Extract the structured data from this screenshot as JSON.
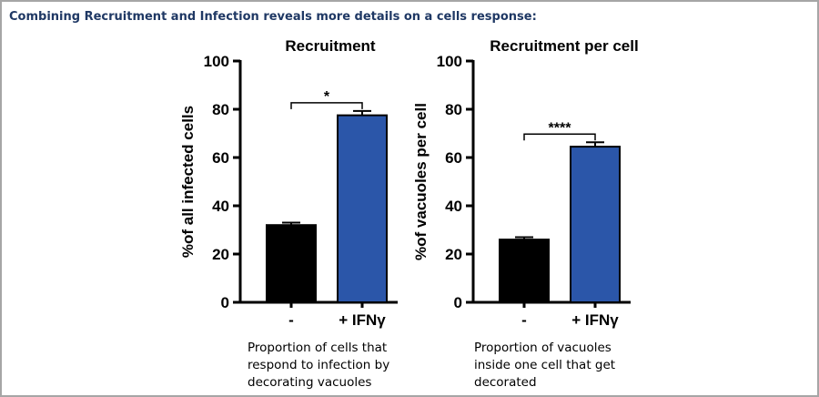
{
  "slide_title": "Combining Recruitment and Infection reveals more details on a cells response:",
  "captions": [
    [
      "Proportion of cells that",
      "respond to infection by",
      "decorating vacuoles"
    ],
    [
      "Proportion of vacuoles",
      "inside one cell that get",
      "decorated"
    ]
  ],
  "chart_data": [
    {
      "type": "bar",
      "title": "Recruitment",
      "xlabel": "",
      "ylabel": "%of all infected cells",
      "ylim": [
        0,
        100
      ],
      "yticks": [
        0,
        20,
        40,
        60,
        80,
        100
      ],
      "categories": [
        "-",
        "+ IFNγ"
      ],
      "values": [
        32,
        77.5
      ],
      "errors": [
        1,
        1.8
      ],
      "bar_colors": [
        "#000000",
        "#2b56a9"
      ],
      "significance": "*",
      "grid": false
    },
    {
      "type": "bar",
      "title": "Recruitment per cell",
      "xlabel": "",
      "ylabel": "%of vacuoles per cell",
      "ylim": [
        0,
        100
      ],
      "yticks": [
        0,
        20,
        40,
        60,
        80,
        100
      ],
      "categories": [
        "-",
        "+ IFNγ"
      ],
      "values": [
        26,
        64.5
      ],
      "errors": [
        1,
        1.8
      ],
      "bar_colors": [
        "#000000",
        "#2b56a9"
      ],
      "significance": "****",
      "grid": false
    }
  ]
}
